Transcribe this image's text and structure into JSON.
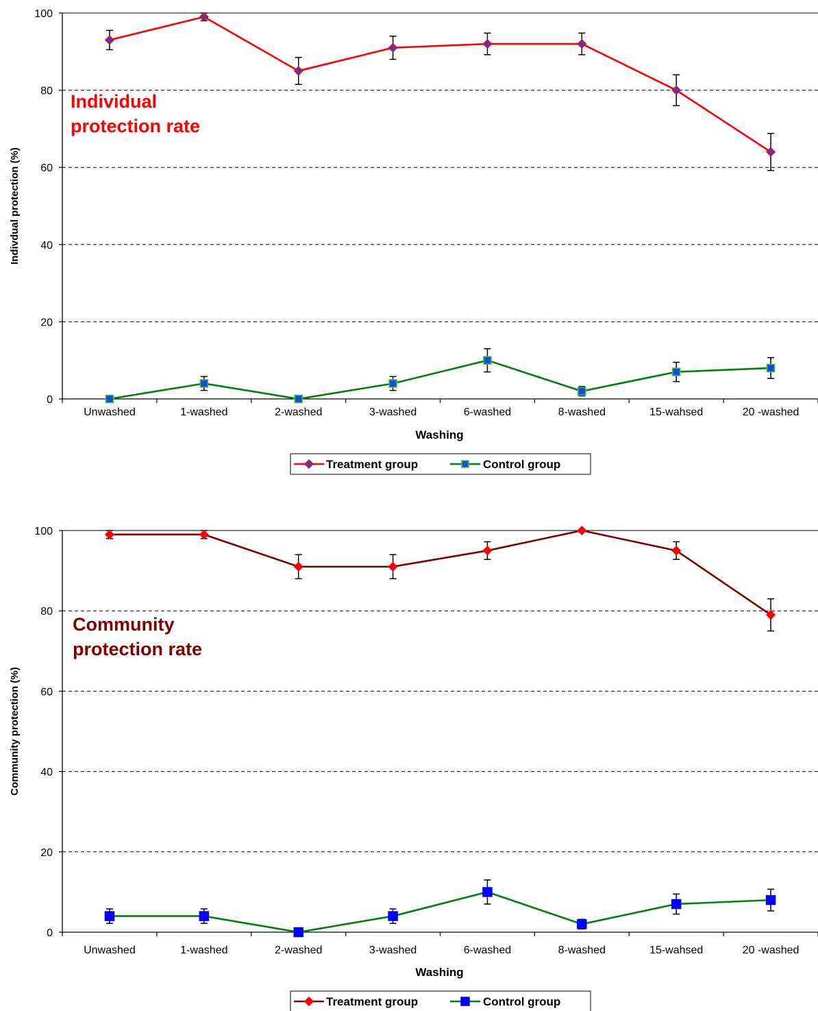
{
  "chart_data": [
    {
      "type": "line",
      "categories": [
        "Unwashed",
        "1-washed",
        "2-washed",
        "3-washed",
        "6-washed",
        "8-washed",
        "15-wahsed",
        "20 -washed"
      ],
      "series": [
        {
          "name": "Treatment group",
          "values": [
            93,
            99,
            85,
            91,
            92,
            92,
            80,
            64
          ],
          "errors": [
            2.5,
            1,
            3.5,
            3,
            2.8,
            2.8,
            4,
            4.8
          ],
          "color": "#ff0000",
          "marker_fill": "#4040c0",
          "marker": "diamond"
        },
        {
          "name": "Control group",
          "values": [
            0,
            4,
            0,
            4,
            10,
            2,
            7,
            8
          ],
          "errors": [
            0,
            1.8,
            0,
            1.8,
            3,
            1.2,
            2.5,
            2.7
          ],
          "color": "#00800a",
          "marker_fill": "#1a4adf",
          "marker_edge": "#33cc33",
          "marker": "square"
        }
      ],
      "xlabel": "Washing",
      "ylabel": "Individual protection (%)",
      "ylabel_text": "Indivdual protection (%)",
      "annotation": [
        "Individual",
        "protection rate"
      ],
      "annotation_color": "#ff0000",
      "ylim": [
        0,
        100
      ],
      "yticks": [
        "0",
        "20",
        "40",
        "60",
        "80",
        "100"
      ],
      "grid": "dashed horizontal",
      "legend_position": "bottom-center"
    },
    {
      "type": "line",
      "categories": [
        "Unwashed",
        "1-washed",
        "2-washed",
        "3-washed",
        "6-washed",
        "8-washed",
        "15-wahsed",
        "20 -washed"
      ],
      "series": [
        {
          "name": "Treatment group",
          "values": [
            99,
            99,
            91,
            91,
            95,
            100,
            95,
            79
          ],
          "errors": [
            1,
            1,
            3,
            3,
            2.2,
            0,
            2.2,
            4
          ],
          "color": "#800000",
          "marker_fill": "#ff0000",
          "marker": "diamond"
        },
        {
          "name": "Control group",
          "values": [
            4,
            4,
            0,
            4,
            10,
            2,
            7,
            8
          ],
          "errors": [
            1.8,
            1.8,
            0,
            1.8,
            3,
            1.2,
            2.5,
            2.7
          ],
          "color": "#00800a",
          "marker_fill": "#0000ff",
          "marker": "square"
        }
      ],
      "xlabel": "Washing",
      "ylabel_text": "Community protection (%)",
      "annotation": [
        "Community",
        "protection rate"
      ],
      "annotation_color": "#800000",
      "ylim": [
        0,
        100
      ],
      "yticks": [
        "0",
        "20",
        "40",
        "60",
        "80",
        "100"
      ],
      "grid": "dashed horizontal",
      "legend_position": "bottom-center"
    }
  ]
}
